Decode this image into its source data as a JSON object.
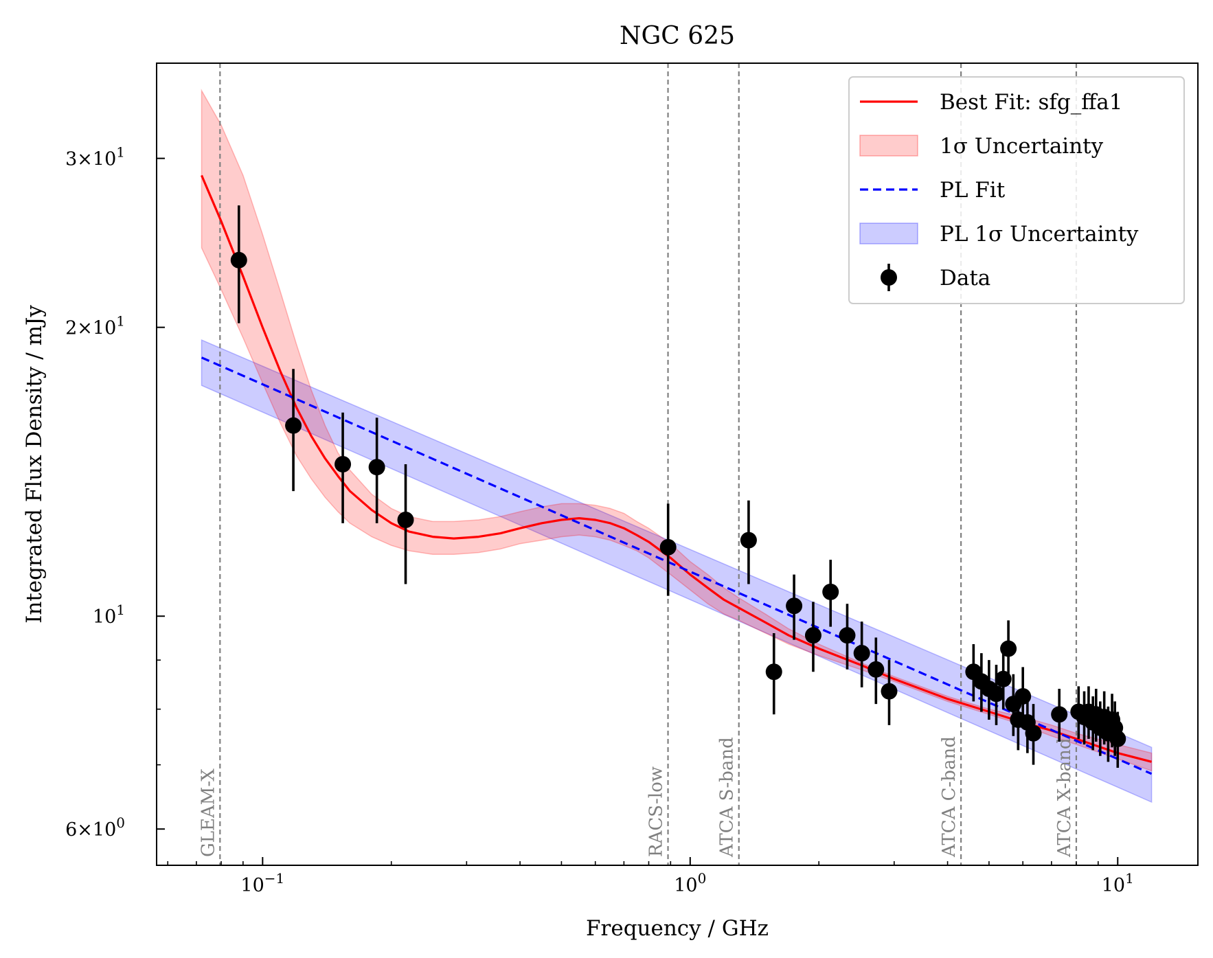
{
  "chart_data": {
    "type": "scatter",
    "title": "NGC 625",
    "xlabel": "Frequency / GHz",
    "ylabel": "Integrated Flux Density / mJy",
    "xscale": "log",
    "yscale": "log",
    "xlim": [
      0.0565,
      15.4
    ],
    "ylim": [
      5.5,
      37.7
    ],
    "x_ticks": [
      {
        "value": 0.1,
        "base": "10",
        "exp": "−1"
      },
      {
        "value": 1,
        "base": "10",
        "exp": "0"
      },
      {
        "value": 10,
        "base": "10",
        "exp": "1"
      }
    ],
    "y_ticks": [
      {
        "value": 6,
        "mant": "6",
        "base": "10",
        "exp": "0"
      },
      {
        "value": 10,
        "mant": "",
        "base": "10",
        "exp": "1"
      },
      {
        "value": 20,
        "mant": "2",
        "base": "10",
        "exp": "1"
      },
      {
        "value": 30,
        "mant": "3",
        "base": "10",
        "exp": "1"
      }
    ],
    "legend": {
      "position": "top-right",
      "entries": [
        {
          "key": "best_fit",
          "label": "Best Fit: sfg_ffa1"
        },
        {
          "key": "best_band",
          "label": "1σ Uncertainty"
        },
        {
          "key": "pl_fit",
          "label": "PL Fit"
        },
        {
          "key": "pl_band",
          "label": "PL 1σ Uncertainty"
        },
        {
          "key": "data",
          "label": "Data"
        }
      ]
    },
    "vlines": [
      {
        "x": 0.0795,
        "label": "GLEAM-X"
      },
      {
        "x": 0.8875,
        "label": "RACS-low"
      },
      {
        "x": 1.3,
        "label": "ATCA S-band"
      },
      {
        "x": 4.3,
        "label": "ATCA C-band"
      },
      {
        "x": 8.0,
        "label": "ATCA X-band"
      }
    ],
    "colors": {
      "best_fit": "#ff0000",
      "best_band": "#ff0000",
      "pl_fit": "#0000ff",
      "pl_band": "#0000ff",
      "data": "#000000",
      "vline": "#808080"
    },
    "series": [
      {
        "name": "Data",
        "points": [
          {
            "x": 0.088,
            "y": 23.5,
            "err": 3.3
          },
          {
            "x": 0.118,
            "y": 15.8,
            "err": 2.3
          },
          {
            "x": 0.154,
            "y": 14.4,
            "err": 1.9
          },
          {
            "x": 0.185,
            "y": 14.3,
            "err": 1.8
          },
          {
            "x": 0.216,
            "y": 12.6,
            "err": 1.8
          },
          {
            "x": 0.888,
            "y": 11.8,
            "err": 1.3
          },
          {
            "x": 1.37,
            "y": 12.0,
            "err": 1.2
          },
          {
            "x": 1.57,
            "y": 8.75,
            "err": 0.85
          },
          {
            "x": 1.75,
            "y": 10.25,
            "err": 0.8
          },
          {
            "x": 1.94,
            "y": 9.55,
            "err": 0.8
          },
          {
            "x": 2.13,
            "y": 10.6,
            "err": 0.85
          },
          {
            "x": 2.33,
            "y": 9.55,
            "err": 0.75
          },
          {
            "x": 2.52,
            "y": 9.15,
            "err": 0.72
          },
          {
            "x": 2.72,
            "y": 8.8,
            "err": 0.7
          },
          {
            "x": 2.92,
            "y": 8.35,
            "err": 0.65
          },
          {
            "x": 4.6,
            "y": 8.75,
            "err": 0.6
          },
          {
            "x": 4.8,
            "y": 8.55,
            "err": 0.6
          },
          {
            "x": 5.0,
            "y": 8.4,
            "err": 0.6
          },
          {
            "x": 5.2,
            "y": 8.3,
            "err": 0.6
          },
          {
            "x": 5.4,
            "y": 8.6,
            "err": 0.6
          },
          {
            "x": 5.55,
            "y": 9.25,
            "err": 0.65
          },
          {
            "x": 5.7,
            "y": 8.1,
            "err": 0.6
          },
          {
            "x": 5.85,
            "y": 7.8,
            "err": 0.55
          },
          {
            "x": 6.0,
            "y": 8.25,
            "err": 0.6
          },
          {
            "x": 6.15,
            "y": 7.75,
            "err": 0.55
          },
          {
            "x": 6.35,
            "y": 7.55,
            "err": 0.55
          },
          {
            "x": 7.3,
            "y": 7.9,
            "err": 0.5
          },
          {
            "x": 8.1,
            "y": 7.95,
            "err": 0.5
          },
          {
            "x": 8.35,
            "y": 7.85,
            "err": 0.5
          },
          {
            "x": 8.55,
            "y": 7.95,
            "err": 0.5
          },
          {
            "x": 8.75,
            "y": 7.75,
            "err": 0.5
          },
          {
            "x": 8.9,
            "y": 7.9,
            "err": 0.5
          },
          {
            "x": 9.1,
            "y": 7.65,
            "err": 0.5
          },
          {
            "x": 9.3,
            "y": 7.85,
            "err": 0.5
          },
          {
            "x": 9.5,
            "y": 7.55,
            "err": 0.5
          },
          {
            "x": 9.7,
            "y": 7.8,
            "err": 0.5
          },
          {
            "x": 9.85,
            "y": 7.65,
            "err": 0.5
          },
          {
            "x": 10.0,
            "y": 7.45,
            "err": 0.5
          }
        ]
      },
      {
        "name": "Best Fit: sfg_ffa1",
        "x": [
          0.072,
          0.08,
          0.09,
          0.1,
          0.11,
          0.12,
          0.13,
          0.14,
          0.15,
          0.16,
          0.18,
          0.2,
          0.22,
          0.25,
          0.28,
          0.32,
          0.36,
          0.4,
          0.45,
          0.5,
          0.55,
          0.6,
          0.65,
          0.7,
          0.75,
          0.8,
          0.9,
          1.0,
          1.1,
          1.2,
          1.3,
          1.5,
          1.7,
          2.0,
          2.5,
          3.0,
          4.0,
          5.0,
          6.0,
          7.0,
          8.0,
          10.0,
          12.0
        ],
        "y": [
          28.8,
          25.8,
          22.6,
          20.0,
          18.0,
          16.5,
          15.4,
          14.6,
          14.0,
          13.5,
          12.9,
          12.5,
          12.25,
          12.1,
          12.05,
          12.1,
          12.2,
          12.35,
          12.5,
          12.6,
          12.65,
          12.6,
          12.5,
          12.35,
          12.15,
          11.95,
          11.5,
          11.05,
          10.7,
          10.4,
          10.2,
          9.85,
          9.55,
          9.25,
          8.9,
          8.6,
          8.2,
          7.95,
          7.75,
          7.6,
          7.45,
          7.2,
          7.05
        ]
      },
      {
        "name": "1σ Uncertainty",
        "x": [
          0.072,
          0.08,
          0.09,
          0.1,
          0.11,
          0.12,
          0.13,
          0.14,
          0.15,
          0.16,
          0.18,
          0.2,
          0.22,
          0.25,
          0.28,
          0.32,
          0.36,
          0.4,
          0.45,
          0.5,
          0.55,
          0.6,
          0.65,
          0.7,
          0.75,
          0.8,
          0.9,
          1.0,
          1.1,
          1.2,
          1.3,
          1.5,
          1.7,
          2.0,
          2.5,
          3.0,
          4.0,
          5.0,
          6.0,
          7.0,
          8.0,
          10.0,
          12.0
        ],
        "upper": [
          35.3,
          32.5,
          28.8,
          25.0,
          21.8,
          19.2,
          17.2,
          15.8,
          14.8,
          14.2,
          13.4,
          12.95,
          12.7,
          12.55,
          12.55,
          12.6,
          12.7,
          12.85,
          13.0,
          13.1,
          13.1,
          13.05,
          12.95,
          12.8,
          12.55,
          12.35,
          11.9,
          11.4,
          11.05,
          10.7,
          10.45,
          10.05,
          9.7,
          9.35,
          8.95,
          8.65,
          8.25,
          8.0,
          7.85,
          7.7,
          7.55,
          7.35,
          7.2
        ],
        "lower": [
          24.2,
          21.9,
          19.5,
          17.5,
          15.9,
          14.7,
          13.9,
          13.3,
          12.85,
          12.5,
          12.1,
          11.85,
          11.7,
          11.6,
          11.6,
          11.65,
          11.75,
          11.9,
          12.0,
          12.1,
          12.15,
          12.1,
          12.0,
          11.85,
          11.7,
          11.5,
          11.05,
          10.65,
          10.3,
          10.05,
          9.9,
          9.6,
          9.35,
          9.1,
          8.8,
          8.55,
          8.15,
          7.9,
          7.7,
          7.5,
          7.35,
          7.1,
          6.9
        ]
      },
      {
        "name": "PL Fit",
        "x": [
          0.072,
          12.0
        ],
        "y": [
          18.6,
          6.85
        ]
      },
      {
        "name": "PL 1σ Uncertainty",
        "x": [
          0.072,
          12.0
        ],
        "upper": [
          19.4,
          7.3
        ],
        "lower": [
          17.4,
          6.4
        ]
      }
    ]
  }
}
